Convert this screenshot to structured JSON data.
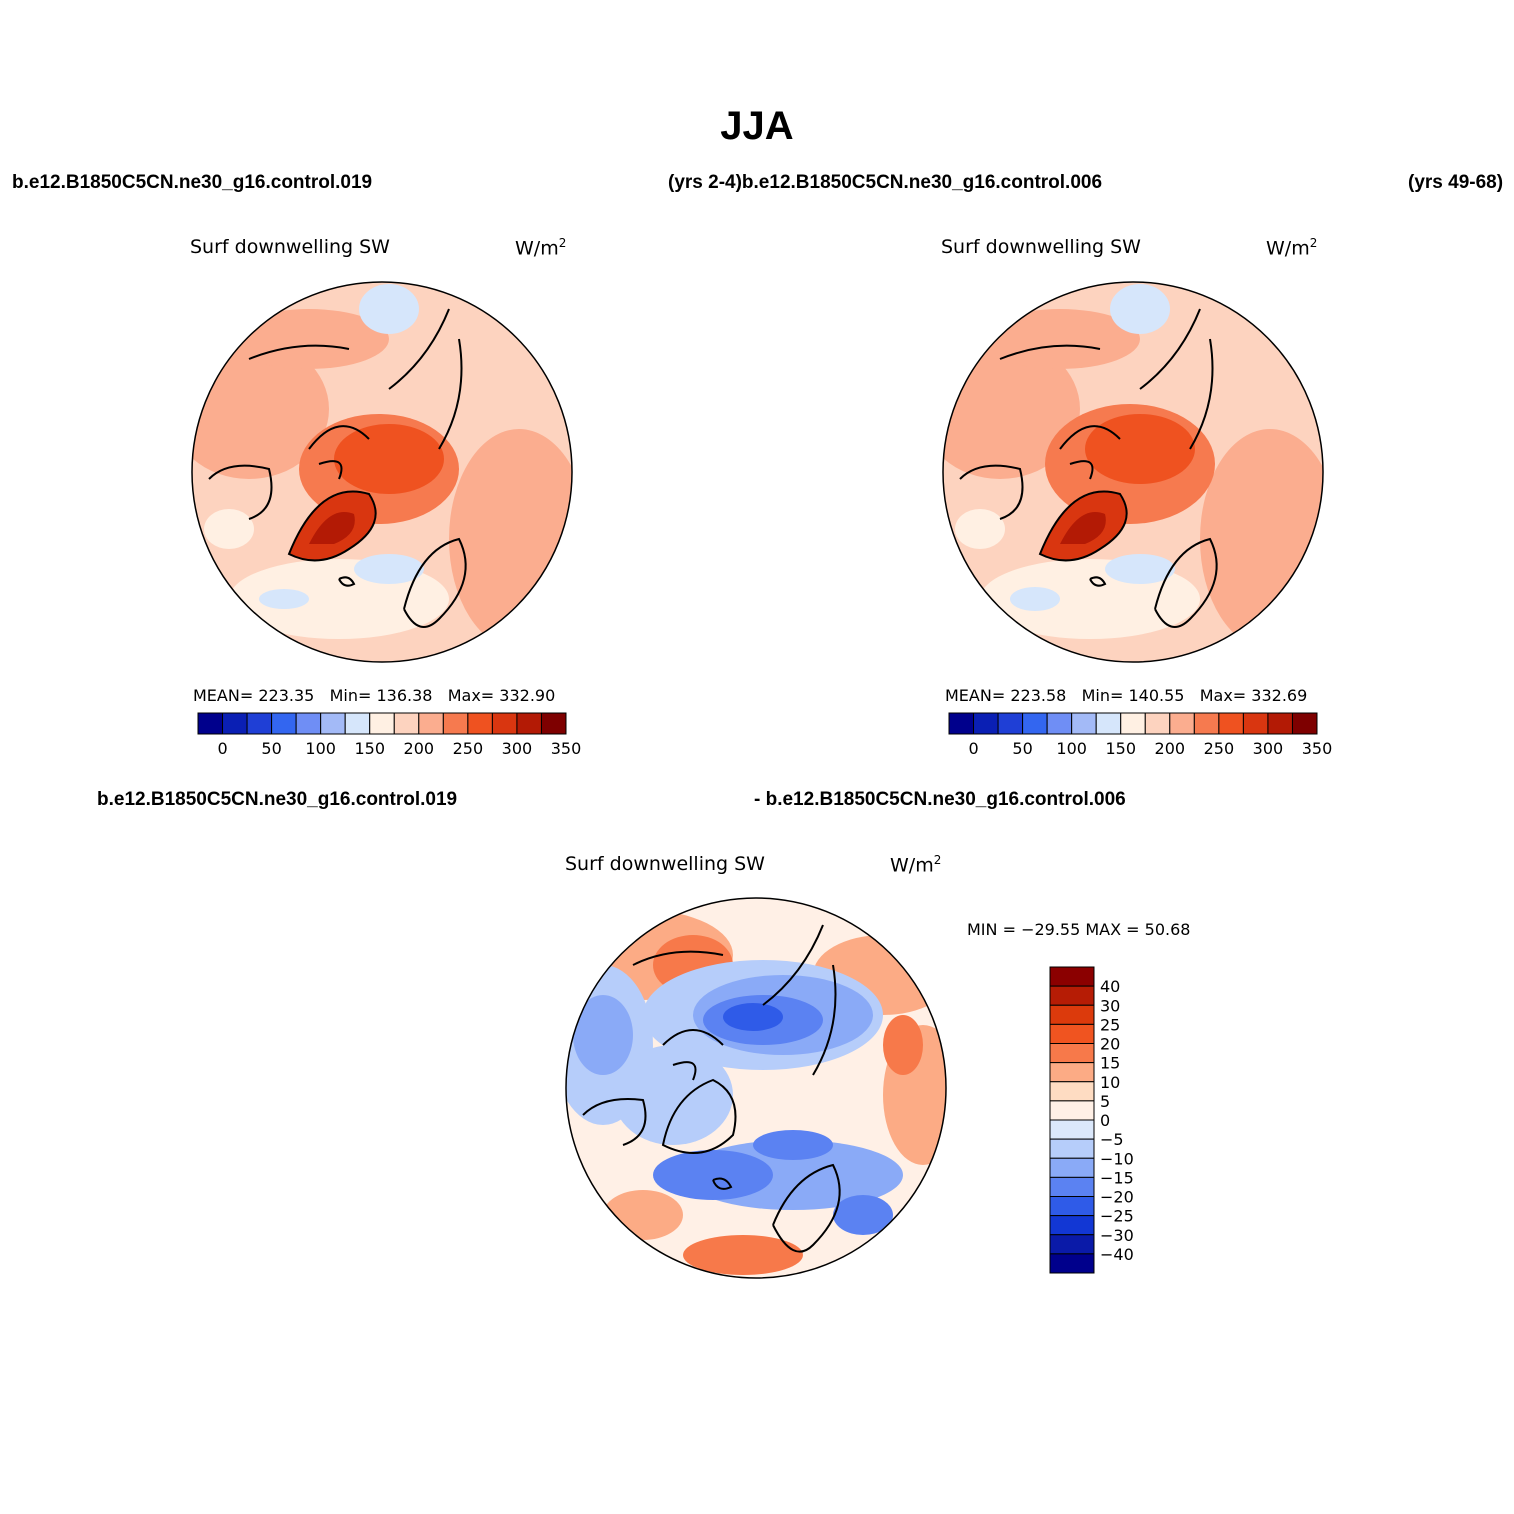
{
  "title": "JJA",
  "header": {
    "run_top_left": "b.e12.B1850C5CN.ne30_g16.control.019",
    "years_left_and_run_top_right": "(yrs 2-4)b.e12.B1850C5CN.ne30_g16.control.006",
    "years_right": "(yrs 49-68)"
  },
  "panels": [
    {
      "id": "case1",
      "variable": "Surf downwelling SW",
      "units_base": "W/m",
      "units_exp": "2",
      "stats": {
        "mean_label": "MEAN=",
        "mean": "223.35",
        "min_label": "Min=",
        "min": "136.38",
        "max_label": "Max=",
        "max": "332.90"
      }
    },
    {
      "id": "case2",
      "variable": "Surf downwelling SW",
      "units_base": "W/m",
      "units_exp": "2",
      "stats": {
        "mean_label": "MEAN=",
        "mean": "223.58",
        "min_label": "Min=",
        "min": "140.55",
        "max_label": "Max=",
        "max": "332.69"
      }
    }
  ],
  "field_colorbar": {
    "colors": [
      "#00008c",
      "#0a1fb4",
      "#1f3fd6",
      "#3366f0",
      "#6f8ef5",
      "#a3baf7",
      "#d6e6fb",
      "#fff0e3",
      "#fdd3bf",
      "#fbad8f",
      "#f67a4f",
      "#ef5220",
      "#d93610",
      "#b31a05",
      "#7e0000"
    ],
    "tick_labels": [
      "0",
      "50",
      "100",
      "150",
      "200",
      "250",
      "300",
      "350"
    ]
  },
  "diff": {
    "label_left": "b.e12.B1850C5CN.ne30_g16.control.019",
    "label_right": "- b.e12.B1850C5CN.ne30_g16.control.006",
    "variable": "Surf downwelling SW",
    "units_base": "W/m",
    "units_exp": "2",
    "minmax": "MIN = −29.55 MAX =  50.68",
    "colorbar_colors_top_to_bottom": [
      "#8b0000",
      "#b61c05",
      "#dc3a0c",
      "#f05420",
      "#f7794a",
      "#fcab85",
      "#fedcc2",
      "#fff0e6",
      "#dbe8fb",
      "#b6cdfa",
      "#8aaaf7",
      "#5b82f2",
      "#2f5be8",
      "#1237d4",
      "#0a1aa8",
      "#00008c"
    ],
    "tick_labels": [
      "40",
      "30",
      "25",
      "20",
      "15",
      "10",
      "5",
      "0",
      "−5",
      "−10",
      "−15",
      "−20",
      "−25",
      "−30",
      "−40"
    ]
  }
}
